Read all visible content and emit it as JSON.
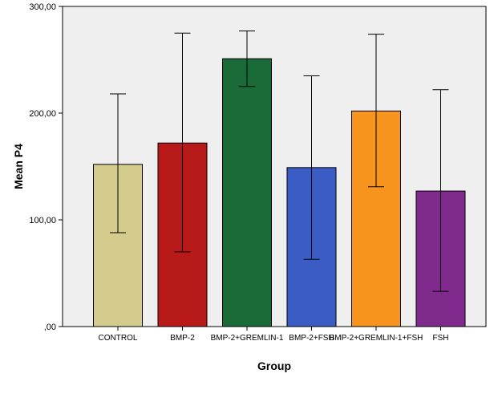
{
  "chart_data": {
    "type": "bar",
    "xlabel": "Group",
    "ylabel": "Mean P4",
    "categories": [
      "CONTROL",
      "BMP-2",
      "BMP-2+GREMLIN-1",
      "BMP-2+FSH",
      "BMP-2+GREMLIN-1+FSH",
      "FSH"
    ],
    "values": [
      152,
      172,
      251,
      149,
      202,
      127
    ],
    "error_low": [
      88,
      70,
      225,
      63,
      131,
      33
    ],
    "error_high": [
      218,
      275,
      277,
      235,
      274,
      222
    ],
    "colors": [
      "#d3cc8c",
      "#b81a1a",
      "#1b6b38",
      "#3a5cc4",
      "#f7941d",
      "#7f2a8c"
    ],
    "ylim": [
      0,
      300
    ],
    "yticks": [
      0,
      100,
      200,
      300
    ],
    "ytick_labels": [
      ",00",
      "100,00",
      "200,00",
      "300,00"
    ],
    "grid": false,
    "plot_background": "#efefef",
    "error_bar_color": "#000000"
  }
}
